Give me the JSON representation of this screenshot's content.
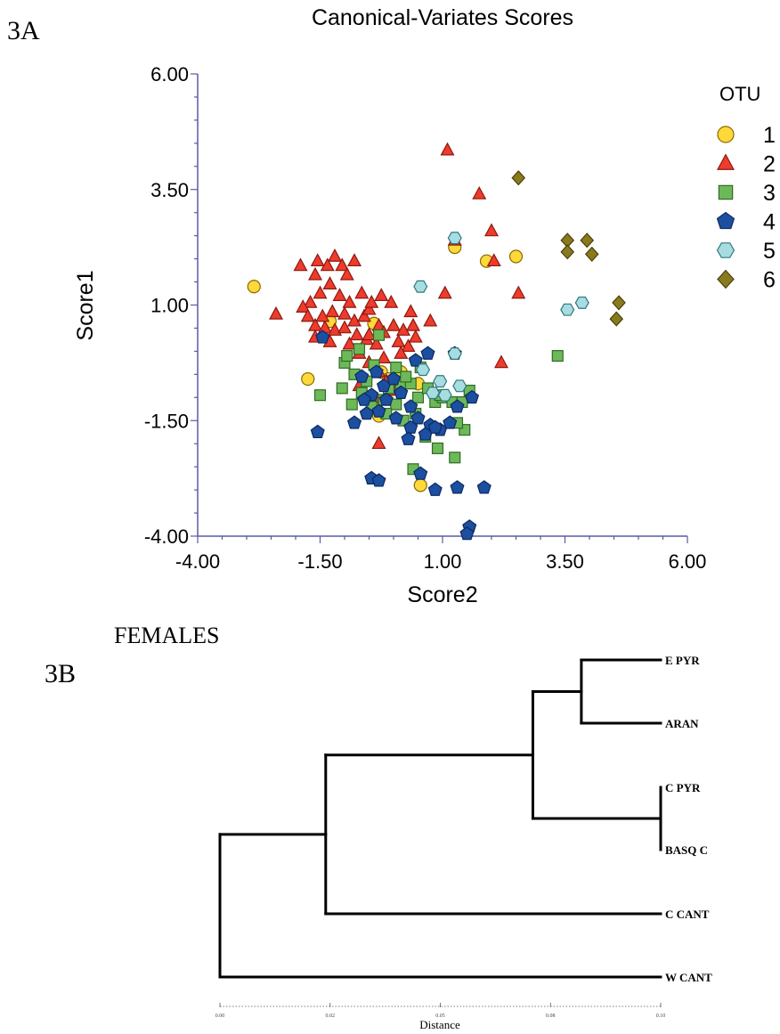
{
  "panel_a": {
    "panel_label": "3A",
    "legend_title": "OTU",
    "chart_data": {
      "type": "scatter",
      "title": "Canonical-Variates Scores",
      "xlabel": "Score2",
      "ylabel": "Score1",
      "xlim": [
        -4.0,
        6.0
      ],
      "ylim": [
        -4.0,
        6.0
      ],
      "x_ticks": [
        "-4.00",
        "-1.50",
        "1.00",
        "3.50",
        "6.00"
      ],
      "y_ticks": [
        "-4.00",
        "-1.50",
        "1.00",
        "3.50",
        "6.00"
      ],
      "grid": false,
      "legend_position": "right",
      "series": [
        {
          "name": "1",
          "marker": "circle",
          "color": "#ffd83a",
          "stroke": "#8a6a00",
          "points": [
            [
              -2.85,
              1.4
            ],
            [
              -1.3,
              0.65
            ],
            [
              -0.4,
              0.6
            ],
            [
              -0.25,
              -0.45
            ],
            [
              0.15,
              -0.45
            ],
            [
              0.5,
              -0.7
            ],
            [
              -1.75,
              -0.6
            ],
            [
              -0.55,
              -1.0
            ],
            [
              -0.35,
              -1.25
            ],
            [
              -0.3,
              -1.4
            ],
            [
              0.55,
              -2.9
            ],
            [
              1.25,
              2.25
            ],
            [
              1.9,
              1.95
            ],
            [
              2.5,
              2.05
            ],
            [
              -0.1,
              -0.6
            ]
          ]
        },
        {
          "name": "2",
          "marker": "triangle",
          "color": "#ef3b2c",
          "stroke": "#8b1a10",
          "points": [
            [
              1.1,
              4.35
            ],
            [
              1.75,
              3.4
            ],
            [
              2.0,
              2.6
            ],
            [
              1.25,
              2.4
            ],
            [
              2.05,
              1.95
            ],
            [
              1.05,
              1.25
            ],
            [
              2.55,
              1.25
            ],
            [
              2.2,
              -0.25
            ],
            [
              0.35,
              0.85
            ],
            [
              -2.4,
              0.8
            ],
            [
              -1.9,
              1.85
            ],
            [
              -1.55,
              1.95
            ],
            [
              -1.35,
              1.85
            ],
            [
              -1.2,
              2.05
            ],
            [
              -1.05,
              1.85
            ],
            [
              -0.95,
              1.65
            ],
            [
              -0.8,
              1.95
            ],
            [
              -1.6,
              1.65
            ],
            [
              -1.3,
              1.45
            ],
            [
              -1.5,
              1.25
            ],
            [
              -1.7,
              1.05
            ],
            [
              -1.85,
              0.95
            ],
            [
              -1.75,
              0.75
            ],
            [
              -1.6,
              0.55
            ],
            [
              -1.4,
              0.5
            ],
            [
              -1.2,
              0.45
            ],
            [
              -1.0,
              0.5
            ],
            [
              -0.8,
              0.65
            ],
            [
              -0.6,
              0.75
            ],
            [
              -0.5,
              0.9
            ],
            [
              -0.3,
              0.55
            ],
            [
              -0.2,
              0.4
            ],
            [
              0.0,
              0.55
            ],
            [
              0.2,
              0.45
            ],
            [
              -0.65,
              1.25
            ],
            [
              -0.45,
              1.05
            ],
            [
              -0.25,
              1.2
            ],
            [
              -0.05,
              1.05
            ],
            [
              -1.1,
              1.2
            ],
            [
              -0.9,
              1.05
            ],
            [
              -1.25,
              0.85
            ],
            [
              -1.45,
              0.75
            ],
            [
              -0.75,
              0.35
            ],
            [
              -0.55,
              0.25
            ],
            [
              -0.35,
              0.15
            ],
            [
              0.1,
              0.2
            ],
            [
              0.3,
              0.1
            ],
            [
              0.4,
              0.55
            ],
            [
              0.75,
              0.65
            ],
            [
              -1.6,
              0.3
            ],
            [
              -1.3,
              0.2
            ],
            [
              -0.9,
              0.15
            ],
            [
              -0.7,
              -0.05
            ],
            [
              -0.5,
              -0.25
            ],
            [
              -0.3,
              -0.45
            ],
            [
              -0.15,
              -0.65
            ],
            [
              0.0,
              -0.85
            ],
            [
              -0.7,
              -0.75
            ],
            [
              -0.4,
              -1.0
            ],
            [
              0.15,
              -0.05
            ],
            [
              -1.0,
              0.8
            ],
            [
              -0.5,
              0.35
            ],
            [
              -0.3,
              -2.0
            ],
            [
              -0.2,
              -0.15
            ],
            [
              0.45,
              0.3
            ]
          ]
        },
        {
          "name": "3",
          "marker": "square",
          "color": "#6db95a",
          "stroke": "#2e6b22",
          "points": [
            [
              3.35,
              -0.1
            ],
            [
              -1.5,
              -0.95
            ],
            [
              -1.0,
              -0.25
            ],
            [
              -0.8,
              -0.5
            ],
            [
              -0.55,
              -0.65
            ],
            [
              -0.4,
              -0.3
            ],
            [
              -0.1,
              -0.8
            ],
            [
              0.15,
              -0.75
            ],
            [
              0.35,
              -0.7
            ],
            [
              0.5,
              -1.0
            ],
            [
              0.7,
              -0.8
            ],
            [
              0.85,
              -1.1
            ],
            [
              1.0,
              -1.0
            ],
            [
              1.2,
              -1.1
            ],
            [
              1.45,
              -1.7
            ],
            [
              1.25,
              -2.3
            ],
            [
              0.9,
              -2.1
            ],
            [
              0.65,
              -1.85
            ],
            [
              0.4,
              -2.55
            ],
            [
              0.2,
              -1.5
            ],
            [
              0.05,
              -1.15
            ],
            [
              -0.2,
              -1.05
            ],
            [
              -0.45,
              -1.2
            ],
            [
              -0.65,
              -0.9
            ],
            [
              -1.05,
              -0.8
            ],
            [
              -0.95,
              -0.1
            ],
            [
              -0.7,
              0.05
            ],
            [
              -0.3,
              0.35
            ],
            [
              0.05,
              -0.35
            ],
            [
              0.25,
              -0.55
            ],
            [
              0.55,
              -0.35
            ],
            [
              0.95,
              -0.95
            ],
            [
              1.4,
              -1.1
            ],
            [
              1.55,
              -0.85
            ],
            [
              0.45,
              -1.35
            ],
            [
              -0.15,
              -1.35
            ],
            [
              -0.85,
              -1.15
            ],
            [
              1.3,
              -1.55
            ]
          ]
        },
        {
          "name": "4",
          "marker": "pentagon",
          "color": "#1c4fa0",
          "stroke": "#0b2a60",
          "points": [
            [
              -1.55,
              -1.75
            ],
            [
              -1.45,
              0.3
            ],
            [
              -0.65,
              -0.55
            ],
            [
              -0.35,
              -0.45
            ],
            [
              -0.2,
              -0.75
            ],
            [
              0.0,
              -0.6
            ],
            [
              -0.45,
              -0.95
            ],
            [
              -0.15,
              -1.05
            ],
            [
              0.15,
              -0.9
            ],
            [
              0.35,
              -1.2
            ],
            [
              0.5,
              -1.45
            ],
            [
              0.75,
              -1.6
            ],
            [
              0.95,
              -1.7
            ],
            [
              1.15,
              -1.55
            ],
            [
              1.3,
              -1.2
            ],
            [
              1.6,
              -1.0
            ],
            [
              1.25,
              -0.05
            ],
            [
              0.45,
              -0.2
            ],
            [
              0.7,
              -0.05
            ],
            [
              -0.6,
              -1.05
            ],
            [
              -0.3,
              -1.3
            ],
            [
              0.05,
              -1.45
            ],
            [
              0.35,
              -1.65
            ],
            [
              0.65,
              -1.8
            ],
            [
              0.85,
              -1.65
            ],
            [
              0.3,
              -1.9
            ],
            [
              -0.45,
              -2.75
            ],
            [
              -0.3,
              -2.8
            ],
            [
              0.55,
              -2.65
            ],
            [
              0.85,
              -3.0
            ],
            [
              1.3,
              -2.95
            ],
            [
              1.85,
              -2.95
            ],
            [
              1.55,
              -3.8
            ],
            [
              1.5,
              -3.95
            ],
            [
              -0.8,
              -1.55
            ],
            [
              -0.55,
              -1.35
            ]
          ]
        },
        {
          "name": "5",
          "marker": "hexagon",
          "color": "#a7dde0",
          "stroke": "#2f7680",
          "points": [
            [
              0.55,
              1.4
            ],
            [
              1.25,
              2.45
            ],
            [
              1.25,
              -0.05
            ],
            [
              0.95,
              -0.65
            ],
            [
              1.05,
              -0.95
            ],
            [
              1.35,
              -0.75
            ],
            [
              0.8,
              -0.9
            ],
            [
              3.55,
              0.9
            ],
            [
              3.85,
              1.05
            ],
            [
              0.6,
              -0.4
            ]
          ]
        },
        {
          "name": "6",
          "marker": "diamond",
          "color": "#8a7a1e",
          "stroke": "#4a3f08",
          "points": [
            [
              2.55,
              3.75
            ],
            [
              3.55,
              2.4
            ],
            [
              3.95,
              2.4
            ],
            [
              3.55,
              2.15
            ],
            [
              4.05,
              2.1
            ],
            [
              4.6,
              1.05
            ],
            [
              4.55,
              0.7
            ]
          ]
        }
      ]
    }
  },
  "panel_b": {
    "panel_label": "3B",
    "heading": "FEMALES",
    "xlabel": "Distance",
    "axis_ticks": [
      "0.00",
      "0.02",
      "0.05",
      "0.08",
      "0.10"
    ],
    "chart_data": {
      "type": "dendrogram",
      "leaves": [
        "E PYR",
        "ARAN",
        "C PYR",
        "BASQ C",
        "C CANT",
        "W CANT"
      ],
      "merges": [
        {
          "children": [
            "C PYR",
            "BASQ C"
          ],
          "distance": 0.1
        },
        {
          "children": [
            "E PYR",
            "ARAN"
          ],
          "distance": 0.082
        },
        {
          "children": [
            "E PYR+ARAN",
            "C PYR+BASQ C"
          ],
          "distance": 0.071
        },
        {
          "children": [
            "E PYR+ARAN+C PYR+BASQ C",
            "C CANT"
          ],
          "distance": 0.024
        },
        {
          "children": [
            "all-but-W CANT",
            "W CANT"
          ],
          "distance": 0.0
        }
      ],
      "xlim": [
        0.0,
        0.1
      ]
    }
  }
}
